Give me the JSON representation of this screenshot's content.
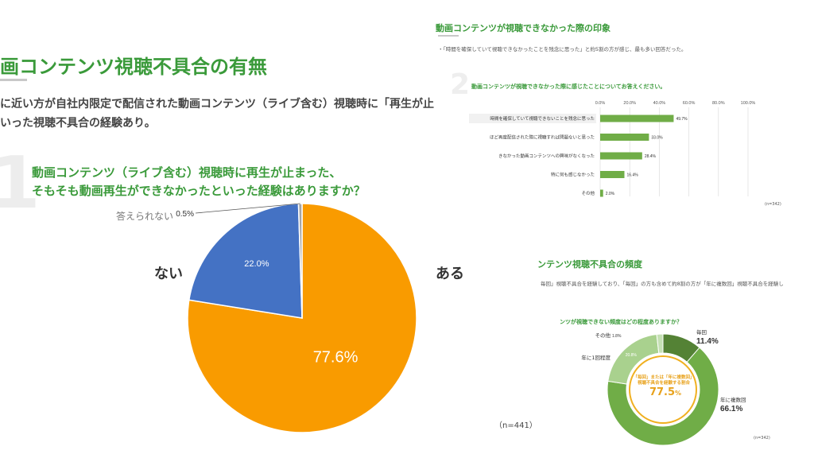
{
  "left_slide": {
    "title": "画コンテンツ視聴不具合の有無",
    "body_line1": "に近い方が自社内限定で配信された動画コンテンツ（ライブ含む）視聴時に「再生が止",
    "body_line2": "いった視聴不具合の経験あり。",
    "question_number": "1",
    "question_line1": "動画コンテンツ（ライブ含む）視聴時に再生が止まった、",
    "question_line2": "そもそも動画再生ができなかったといった経験はありますか？",
    "label_no": "ない",
    "label_yes": "ある",
    "n_label": "（n=441）"
  },
  "chart_data": [
    {
      "type": "pie",
      "title": "動画コンテンツ（ライブ含む）視聴時に再生が止まった、そもそも動画再生ができなかったといった経験はありますか？",
      "slices": [
        {
          "name": "ある",
          "value": 77.6,
          "label": "77.6%",
          "color": "#F99B00"
        },
        {
          "name": "ない",
          "value": 22.0,
          "label": "22.0%",
          "color": "#4472C4"
        },
        {
          "name": "答えられない",
          "value": 0.5,
          "label": "0.5%",
          "color": "#A5A5A5"
        }
      ]
    },
    {
      "type": "bar",
      "orientation": "horizontal",
      "title": "動画コンテンツが視聴できなかった際に感じたことについてお答えください。",
      "categories": [
        "時間を確保していて視聴できないことを残念に思った",
        "ほど再度配信された際に視聴すれば問題ないと思った",
        "きなかった動画コンテンツへの興味がなくなった",
        "特に何も感じなかった",
        "その他"
      ],
      "values": [
        49.7,
        33.0,
        28.4,
        16.4,
        2.0
      ],
      "value_labels": [
        "49.7%",
        "33.0%",
        "28.4%",
        "16.4%",
        "2.0%"
      ],
      "xlim": [
        0,
        100
      ],
      "ticks": [
        "0.0%",
        "20.0%",
        "40.0%",
        "60.0%",
        "80.0%",
        "100.0%"
      ],
      "color": "#70AD47",
      "n_label": "(n=342)"
    },
    {
      "type": "pie",
      "variant": "donut",
      "title": "ンツが視聴できない頻度はどの程度ありますか？",
      "slices": [
        {
          "name": "毎回",
          "value": 11.4,
          "label": "11.4%",
          "color": "#548235"
        },
        {
          "name": "年に複数回",
          "value": 66.1,
          "label": "66.1%",
          "color": "#70AD47"
        },
        {
          "name": "年に1回程度",
          "value": 20.8,
          "label": "20.8%",
          "color": "#A9D18E"
        },
        {
          "name": "その他",
          "value": 1.8,
          "label": "1.8%",
          "color": "#C5E0B4"
        }
      ],
      "center_text": "「毎回」または「年に複数回」視聴不具合を経験する割合",
      "center_value": "77.5",
      "center_unit": "%",
      "n_label": "(n=342)"
    }
  ],
  "right_top_slide": {
    "title": "動画コンテンツが視聴できなかった際の印象",
    "bullet": "・「時間を確保していて視聴できなかったことを残念に思った」と約5割の方が感じ、最も多い回答だった。",
    "question_number": "2"
  },
  "right_bottom_slide": {
    "title": "ンテンツ視聴不具合の頻度",
    "body": "毎回」視聴不具合を経験しており、「毎回」の方も含めて約8割の方が「年に複数回」視聴不具合を経験し"
  }
}
